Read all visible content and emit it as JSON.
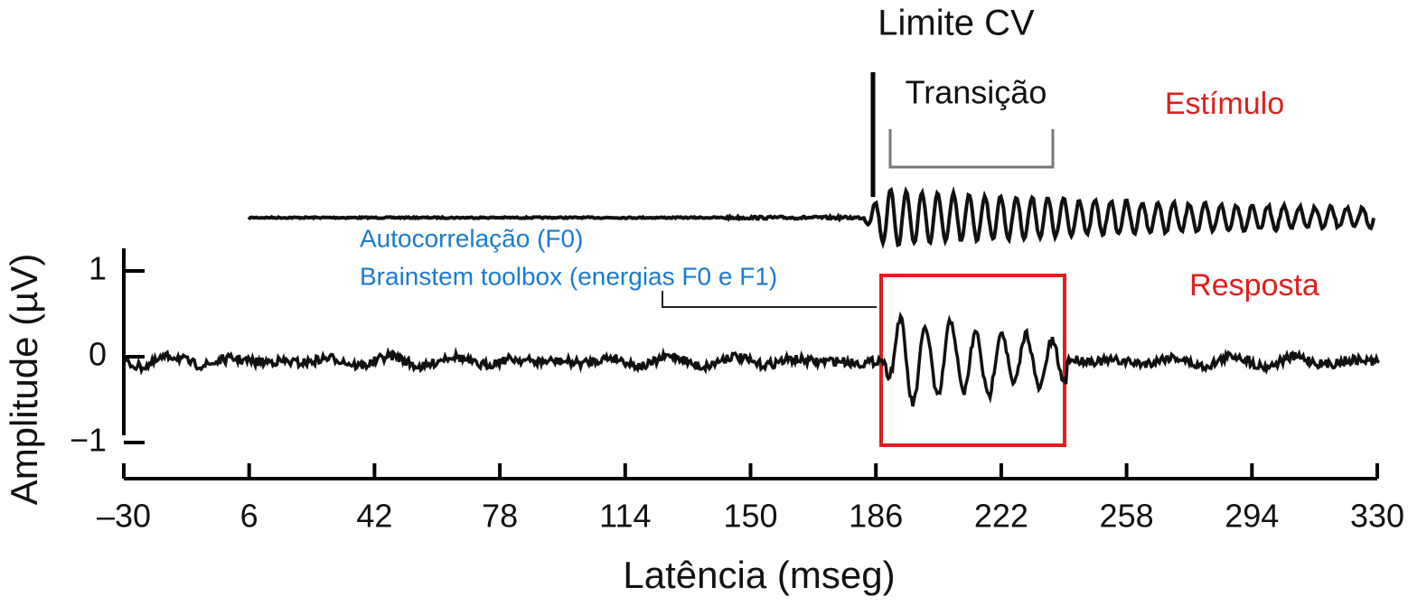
{
  "chart_data": {
    "type": "line",
    "title": "Limite CV",
    "x_label": "Latência (mseg)",
    "y_label": "Amplitude (µV)",
    "xlim": [
      -30,
      330
    ],
    "xticks": [
      {
        "value": -30,
        "label": "–30"
      },
      6,
      42,
      78,
      114,
      150,
      186,
      222,
      258,
      294,
      330
    ],
    "ylim": [
      -1,
      1
    ],
    "yticks": [
      1,
      0,
      {
        "value": -1,
        "label": "−1"
      }
    ],
    "annotations": {
      "transition": "Transição",
      "stimulus": "Estímulo",
      "response": "Resposta",
      "method_1": "Autocorrelação (F0)",
      "method_2": "Brainstem toolbox (energias F0 e F1)"
    }
  }
}
